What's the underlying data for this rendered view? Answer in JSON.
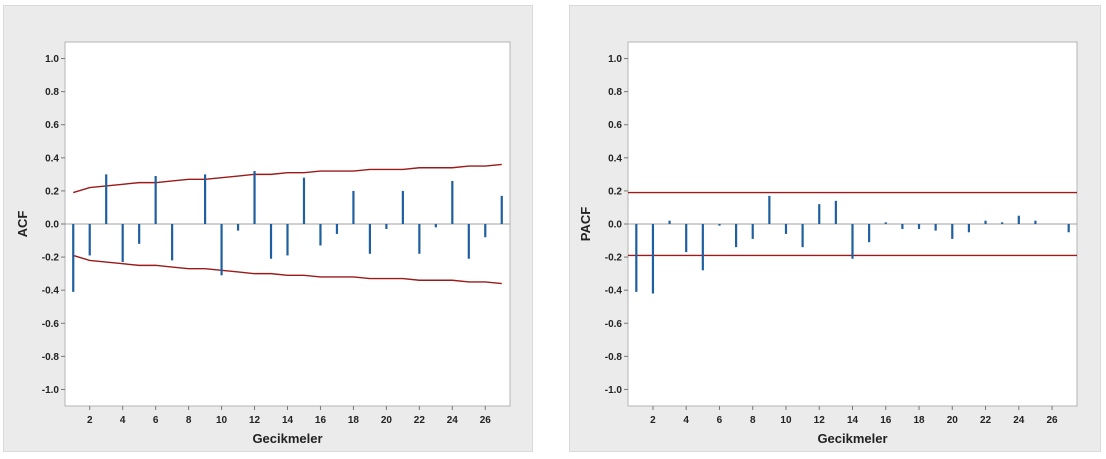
{
  "chart_data": [
    {
      "type": "bar",
      "title": "",
      "xlabel": "Gecikmeler",
      "ylabel": "ACF",
      "ylim": [
        -1.1,
        1.1
      ],
      "yticks": [
        -1.0,
        -0.8,
        -0.6,
        -0.4,
        -0.2,
        0.0,
        0.2,
        0.4,
        0.6,
        0.8,
        1.0
      ],
      "ytick_labels": [
        "-1.0",
        "-0.8",
        "-0.6",
        "-0.4",
        "-0.2",
        "0.0",
        "0.2",
        "0.4",
        "0.6",
        "0.8",
        "1.0"
      ],
      "xlim": [
        0.5,
        27.5
      ],
      "xticks": [
        2,
        4,
        6,
        8,
        10,
        12,
        14,
        16,
        18,
        20,
        22,
        24,
        26
      ],
      "xtick_labels": [
        "2",
        "4",
        "6",
        "8",
        "10",
        "12",
        "14",
        "16",
        "18",
        "20",
        "22",
        "24",
        "26"
      ],
      "lags": [
        1,
        2,
        3,
        4,
        5,
        6,
        7,
        8,
        9,
        10,
        11,
        12,
        13,
        14,
        15,
        16,
        17,
        18,
        19,
        20,
        21,
        22,
        23,
        24,
        25,
        26,
        27
      ],
      "values": [
        -0.41,
        -0.19,
        0.3,
        -0.23,
        -0.12,
        0.29,
        -0.22,
        0.0,
        0.3,
        -0.31,
        -0.04,
        0.32,
        -0.21,
        -0.19,
        0.28,
        -0.13,
        -0.06,
        0.2,
        -0.18,
        -0.03,
        0.2,
        -0.18,
        -0.02,
        0.26,
        -0.21,
        -0.08,
        0.17
      ],
      "upper_limit": [
        0.19,
        0.22,
        0.23,
        0.24,
        0.25,
        0.25,
        0.26,
        0.27,
        0.27,
        0.28,
        0.29,
        0.3,
        0.3,
        0.31,
        0.31,
        0.32,
        0.32,
        0.32,
        0.33,
        0.33,
        0.33,
        0.34,
        0.34,
        0.34,
        0.35,
        0.35,
        0.36
      ],
      "lower_limit": [
        -0.19,
        -0.22,
        -0.23,
        -0.24,
        -0.25,
        -0.25,
        -0.26,
        -0.27,
        -0.27,
        -0.28,
        -0.29,
        -0.3,
        -0.3,
        -0.31,
        -0.31,
        -0.32,
        -0.32,
        -0.32,
        -0.33,
        -0.33,
        -0.33,
        -0.34,
        -0.34,
        -0.34,
        -0.35,
        -0.35,
        -0.36
      ],
      "bar_color": "#1f5fa0",
      "limit_color": "#9b1b1b",
      "grid": false
    },
    {
      "type": "bar",
      "title": "",
      "xlabel": "Gecikmeler",
      "ylabel": "PACF",
      "ylim": [
        -1.1,
        1.1
      ],
      "yticks": [
        -1.0,
        -0.8,
        -0.6,
        -0.4,
        -0.2,
        0.0,
        0.2,
        0.4,
        0.6,
        0.8,
        1.0
      ],
      "ytick_labels": [
        "-1.0",
        "-0.8",
        "-0.6",
        "-0.4",
        "-0.2",
        "0.0",
        "0.2",
        "0.4",
        "0.6",
        "0.8",
        "1.0"
      ],
      "xlim": [
        0.5,
        27.5
      ],
      "xticks": [
        2,
        4,
        6,
        8,
        10,
        12,
        14,
        16,
        18,
        20,
        22,
        24,
        26
      ],
      "xtick_labels": [
        "2",
        "4",
        "6",
        "8",
        "10",
        "12",
        "14",
        "16",
        "18",
        "20",
        "22",
        "24",
        "26"
      ],
      "lags": [
        1,
        2,
        3,
        4,
        5,
        6,
        7,
        8,
        9,
        10,
        11,
        12,
        13,
        14,
        15,
        16,
        17,
        18,
        19,
        20,
        21,
        22,
        23,
        24,
        25,
        26,
        27
      ],
      "values": [
        -0.41,
        -0.42,
        0.02,
        -0.17,
        -0.28,
        -0.01,
        -0.14,
        -0.09,
        0.17,
        -0.06,
        -0.14,
        0.12,
        0.14,
        -0.21,
        -0.11,
        0.01,
        -0.03,
        -0.03,
        -0.04,
        -0.09,
        -0.05,
        0.02,
        0.01,
        0.05,
        0.02,
        0.0,
        -0.05
      ],
      "upper_limit": [
        0.19
      ],
      "lower_limit": [
        -0.19
      ],
      "bar_color": "#1f5fa0",
      "limit_color": "#9b1b1b",
      "grid": false
    }
  ]
}
